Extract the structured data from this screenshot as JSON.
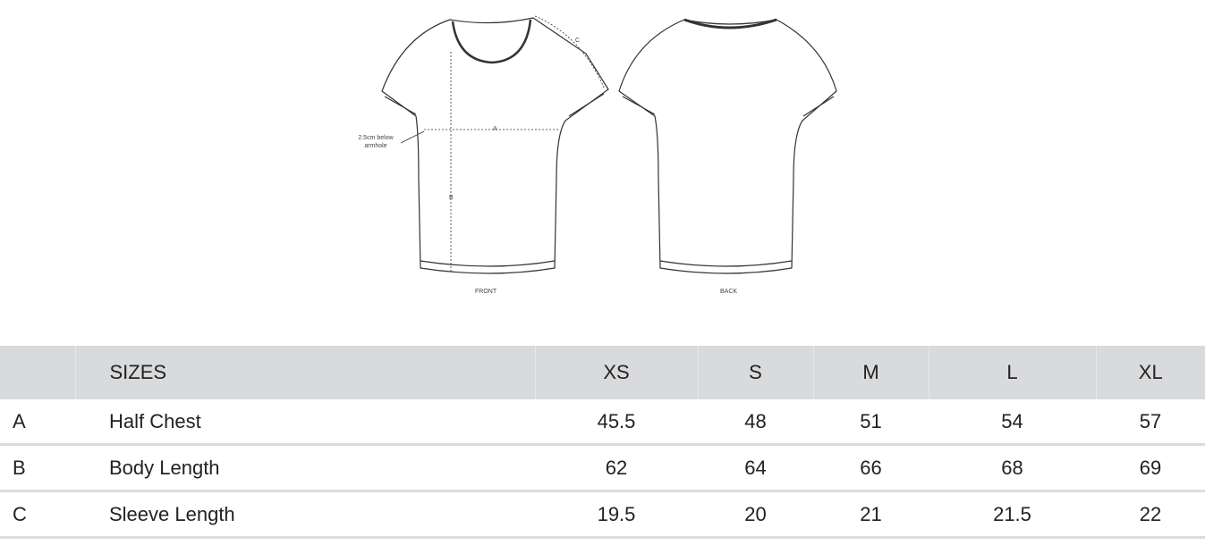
{
  "diagram": {
    "front_label": "FRONT",
    "back_label": "BACK",
    "measure_a": "A",
    "measure_b": "B",
    "measure_c": "C",
    "armhole_note": "2.5cm below armhole"
  },
  "table": {
    "header": {
      "label": "",
      "name": "SIZES",
      "sizes": [
        "XS",
        "S",
        "M",
        "L",
        "XL"
      ]
    },
    "rows": [
      {
        "key": "A",
        "name": "Half Chest",
        "values": [
          "45.5",
          "48",
          "51",
          "54",
          "57"
        ]
      },
      {
        "key": "B",
        "name": "Body Length",
        "values": [
          "62",
          "64",
          "66",
          "68",
          "69"
        ]
      },
      {
        "key": "C",
        "name": "Sleeve Length",
        "values": [
          "19.5",
          "20",
          "21",
          "21.5",
          "22"
        ]
      }
    ]
  }
}
